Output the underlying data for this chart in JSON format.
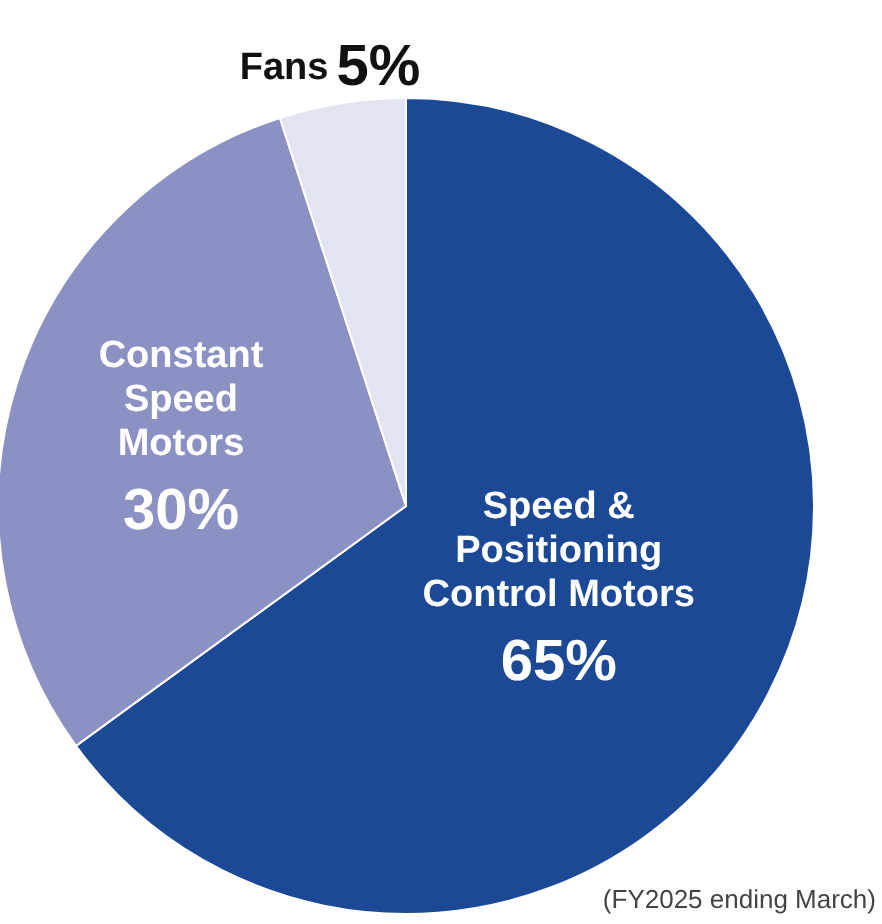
{
  "chart_data": {
    "type": "pie",
    "categories": [
      "Speed &\nPositioning\nControl Motors",
      "Constant\nSpeed\nMotors",
      "Fans"
    ],
    "values": [
      65,
      30,
      5
    ],
    "value_labels": [
      "65%",
      "30%",
      "5%"
    ],
    "colors": [
      "#1b4996",
      "#8b92c3",
      "#e3e4f1"
    ],
    "annotations": [
      "(FY2025 ending March)"
    ]
  }
}
